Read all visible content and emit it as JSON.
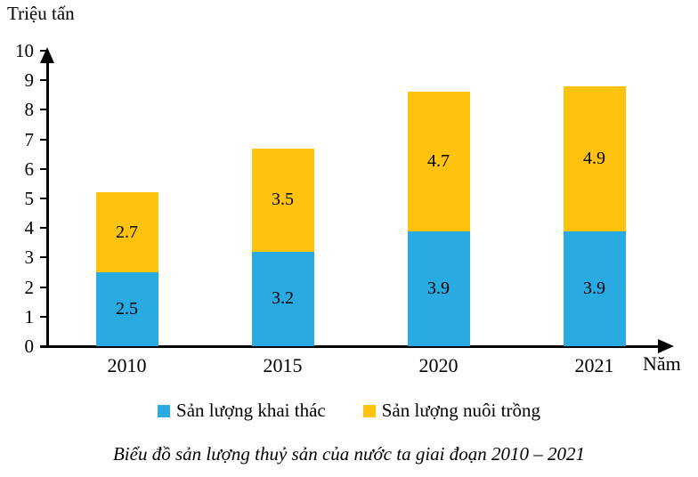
{
  "chart_data": {
    "type": "bar",
    "stacked": true,
    "categories": [
      "2010",
      "2015",
      "2020",
      "2021"
    ],
    "series": [
      {
        "name": "Sản lượng khai thác",
        "color": "#29ABE2",
        "values": [
          2.5,
          3.2,
          3.9,
          3.9
        ]
      },
      {
        "name": "Sản lượng nuôi trồng",
        "color": "#FFC20E",
        "values": [
          2.7,
          3.5,
          4.7,
          4.9
        ]
      }
    ],
    "totals": [
      5.2,
      6.7,
      8.6,
      8.8
    ],
    "title": "Biểu đồ sản lượng thuỷ sản của nước ta giai đoạn 2010 – 2021",
    "xlabel": "Năm",
    "ylabel": "Triệu tấn",
    "ylim": [
      0,
      10
    ],
    "ytick_step": 1,
    "grid": false,
    "legend_position": "bottom",
    "axis_color": "#000000",
    "text_color": "#000000"
  }
}
